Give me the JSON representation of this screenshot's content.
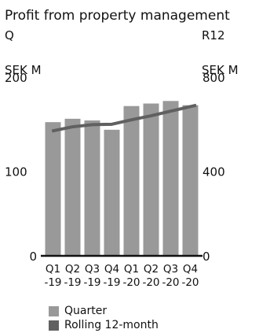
{
  "chart_data": {
    "type": "bar",
    "title": "Profit from property management",
    "left_axis": {
      "label": "Q",
      "unit": "SEK M",
      "ylim": [
        0,
        200
      ],
      "ticks": [
        0,
        100,
        200
      ]
    },
    "right_axis": {
      "label": "R12",
      "unit": "SEK M",
      "ylim": [
        0,
        800
      ],
      "ticks": [
        0,
        400,
        800
      ]
    },
    "categories": [
      "Q1 -19",
      "Q2 -19",
      "Q3 -19",
      "Q4 -19",
      "Q1 -20",
      "Q2 -20",
      "Q3 -20",
      "Q4 -20"
    ],
    "category_lines": [
      [
        "Q1",
        "-19"
      ],
      [
        "Q2",
        "-19"
      ],
      [
        "Q3",
        "-19"
      ],
      [
        "Q4",
        "-19"
      ],
      [
        "Q1",
        "-20"
      ],
      [
        "Q2",
        "-20"
      ],
      [
        "Q3",
        "-20"
      ],
      [
        "Q4",
        "-20"
      ]
    ],
    "series": [
      {
        "name": "Quarter",
        "type": "bar",
        "axis": "left",
        "color": "#999999",
        "values": [
          158,
          162,
          160,
          149,
          177,
          180,
          183,
          178
        ]
      },
      {
        "name": "Rolling 12-month",
        "type": "line",
        "axis": "right",
        "color": "#606060",
        "values": [
          590,
          610,
          620,
          622,
          643,
          662,
          684,
          712
        ]
      }
    ],
    "grid": false,
    "legend_position": "bottom-left"
  }
}
